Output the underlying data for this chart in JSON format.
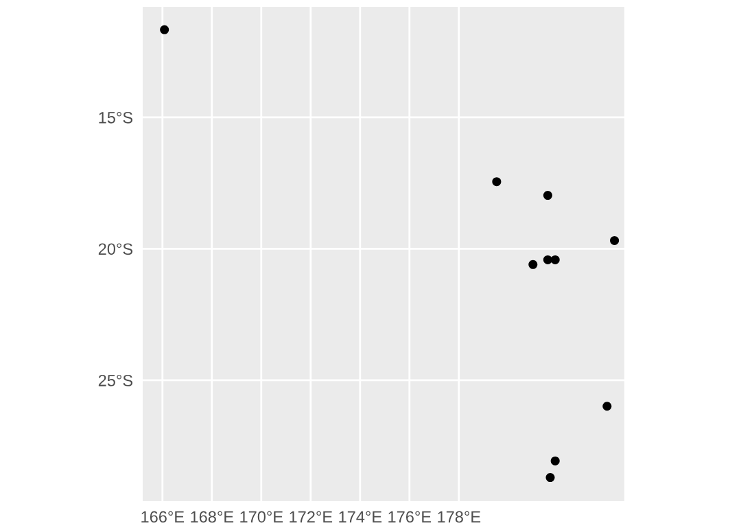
{
  "chart_data": {
    "type": "scatter",
    "x": [
      166.08,
      179.53,
      181.6,
      184.3,
      181.0,
      181.6,
      181.9,
      184.0,
      181.9,
      181.7
    ],
    "series": [
      {
        "color": "#000000",
        "values": [
          -11.67,
          -17.45,
          -17.97,
          -19.69,
          -20.6,
          -20.42,
          -20.42,
          -25.99,
          -28.07,
          -28.7
        ]
      }
    ],
    "xlim": [
      165.2,
      184.7
    ],
    "ylim": [
      -29.6,
      -10.8
    ],
    "xticks": [
      {
        "value": 166,
        "label": "166°E"
      },
      {
        "value": 168,
        "label": "168°E"
      },
      {
        "value": 170,
        "label": "170°E"
      },
      {
        "value": 172,
        "label": "172°E"
      },
      {
        "value": 174,
        "label": "174°E"
      },
      {
        "value": 176,
        "label": "176°E"
      },
      {
        "value": 178,
        "label": "178°E"
      }
    ],
    "yticks": [
      {
        "value": -25,
        "label": "25°S"
      },
      {
        "value": -20,
        "label": "20°S"
      },
      {
        "value": -15,
        "label": "15°S"
      }
    ],
    "grid": true,
    "marker": "circle",
    "legend": false
  }
}
